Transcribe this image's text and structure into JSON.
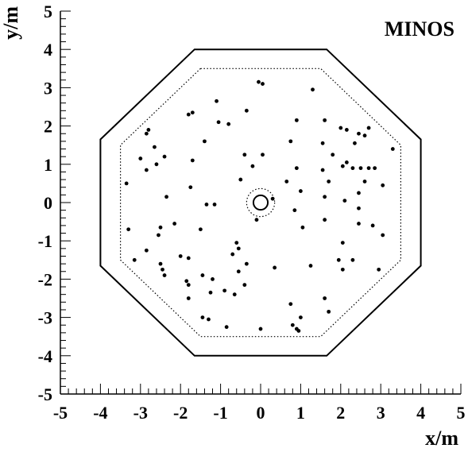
{
  "chart_data": {
    "type": "scatter",
    "title": "MINOS",
    "xlabel": "x/m",
    "ylabel": "y/m",
    "xlim": [
      -5,
      5
    ],
    "ylim": [
      -5,
      5
    ],
    "grid": false,
    "x_ticks": [
      "-5",
      "-4",
      "-3",
      "-2",
      "-1",
      "0",
      "1",
      "2",
      "3",
      "4",
      "5"
    ],
    "y_ticks": [
      "-5",
      "-4",
      "-3",
      "-2",
      "-1",
      "0",
      "1",
      "2",
      "3",
      "4",
      "5"
    ],
    "outer_octagon": [
      [
        -1.65,
        4.0
      ],
      [
        1.65,
        4.0
      ],
      [
        4.0,
        1.65
      ],
      [
        4.0,
        -1.65
      ],
      [
        1.65,
        -4.0
      ],
      [
        -1.65,
        -4.0
      ],
      [
        -4.0,
        -1.65
      ],
      [
        -4.0,
        1.65
      ]
    ],
    "fiducial_octagon": [
      [
        -1.5,
        3.5
      ],
      [
        1.5,
        3.5
      ],
      [
        3.5,
        1.5
      ],
      [
        3.5,
        -1.5
      ],
      [
        1.5,
        -3.5
      ],
      [
        -1.5,
        -3.5
      ],
      [
        -3.5,
        -1.5
      ],
      [
        -3.5,
        1.5
      ]
    ],
    "coil_hole": {
      "center": [
        0,
        0
      ],
      "radius": 0.18
    },
    "coil_fiducial": {
      "center": [
        0,
        0
      ],
      "radius": 0.35
    },
    "points": [
      [
        -0.05,
        3.15
      ],
      [
        0.05,
        3.1
      ],
      [
        1.3,
        2.95
      ],
      [
        -1.1,
        2.65
      ],
      [
        -0.35,
        2.4
      ],
      [
        -1.7,
        2.35
      ],
      [
        -1.8,
        2.3
      ],
      [
        -1.05,
        2.1
      ],
      [
        -0.8,
        2.05
      ],
      [
        0.9,
        2.15
      ],
      [
        1.6,
        2.15
      ],
      [
        2.0,
        1.95
      ],
      [
        2.15,
        1.9
      ],
      [
        2.7,
        1.95
      ],
      [
        2.45,
        1.8
      ],
      [
        2.6,
        1.75
      ],
      [
        -2.8,
        1.9
      ],
      [
        -2.85,
        1.8
      ],
      [
        -2.65,
        1.45
      ],
      [
        -1.4,
        1.6
      ],
      [
        0.75,
        1.6
      ],
      [
        1.55,
        1.55
      ],
      [
        2.35,
        1.55
      ],
      [
        3.3,
        1.4
      ],
      [
        -3.0,
        1.15
      ],
      [
        -2.85,
        0.85
      ],
      [
        -2.6,
        1.0
      ],
      [
        -2.4,
        1.2
      ],
      [
        -1.7,
        1.1
      ],
      [
        -0.4,
        1.25
      ],
      [
        0.05,
        1.25
      ],
      [
        1.8,
        1.25
      ],
      [
        2.15,
        1.05
      ],
      [
        2.05,
        0.95
      ],
      [
        2.3,
        0.9
      ],
      [
        2.5,
        0.9
      ],
      [
        2.7,
        0.9
      ],
      [
        2.85,
        0.9
      ],
      [
        -0.2,
        0.95
      ],
      [
        0.9,
        0.9
      ],
      [
        1.55,
        0.85
      ],
      [
        -0.5,
        0.6
      ],
      [
        0.65,
        0.55
      ],
      [
        1.7,
        0.55
      ],
      [
        2.6,
        0.55
      ],
      [
        3.05,
        0.45
      ],
      [
        -3.35,
        0.5
      ],
      [
        -1.75,
        0.4
      ],
      [
        1.0,
        0.3
      ],
      [
        2.45,
        0.25
      ],
      [
        -2.35,
        0.15
      ],
      [
        0.3,
        0.1
      ],
      [
        1.6,
        0.15
      ],
      [
        2.1,
        0.05
      ],
      [
        -1.35,
        -0.05
      ],
      [
        -1.15,
        -0.05
      ],
      [
        0.85,
        -0.2
      ],
      [
        2.45,
        -0.15
      ],
      [
        -0.1,
        -0.45
      ],
      [
        1.6,
        -0.45
      ],
      [
        -2.15,
        -0.55
      ],
      [
        -2.5,
        -0.65
      ],
      [
        -3.3,
        -0.7
      ],
      [
        1.05,
        -0.65
      ],
      [
        2.45,
        -0.55
      ],
      [
        2.8,
        -0.6
      ],
      [
        -1.5,
        -0.7
      ],
      [
        3.05,
        -0.85
      ],
      [
        -2.55,
        -0.85
      ],
      [
        -0.6,
        -1.05
      ],
      [
        2.05,
        -1.05
      ],
      [
        -0.55,
        -1.2
      ],
      [
        -2.85,
        -1.25
      ],
      [
        -0.7,
        -1.35
      ],
      [
        -2.0,
        -1.4
      ],
      [
        -1.8,
        -1.45
      ],
      [
        -3.15,
        -1.5
      ],
      [
        1.95,
        -1.5
      ],
      [
        2.3,
        -1.5
      ],
      [
        -2.5,
        -1.6
      ],
      [
        -0.35,
        -1.6
      ],
      [
        1.25,
        -1.65
      ],
      [
        0.35,
        -1.7
      ],
      [
        -2.45,
        -1.75
      ],
      [
        2.05,
        -1.75
      ],
      [
        2.95,
        -1.75
      ],
      [
        -0.55,
        -1.8
      ],
      [
        -1.45,
        -1.9
      ],
      [
        -2.4,
        -1.9
      ],
      [
        -1.2,
        -2.0
      ],
      [
        -1.85,
        -2.05
      ],
      [
        -1.8,
        -2.15
      ],
      [
        -0.4,
        -2.15
      ],
      [
        -0.9,
        -2.3
      ],
      [
        -0.65,
        -2.4
      ],
      [
        -1.25,
        -2.35
      ],
      [
        -1.8,
        -2.5
      ],
      [
        1.6,
        -2.5
      ],
      [
        0.75,
        -2.65
      ],
      [
        1.7,
        -2.85
      ],
      [
        -1.45,
        -3.0
      ],
      [
        -1.3,
        -3.05
      ],
      [
        1.0,
        -3.0
      ],
      [
        0.8,
        -3.2
      ],
      [
        0.9,
        -3.3
      ],
      [
        0.95,
        -3.35
      ],
      [
        -0.85,
        -3.25
      ],
      [
        0.0,
        -3.3
      ]
    ]
  }
}
